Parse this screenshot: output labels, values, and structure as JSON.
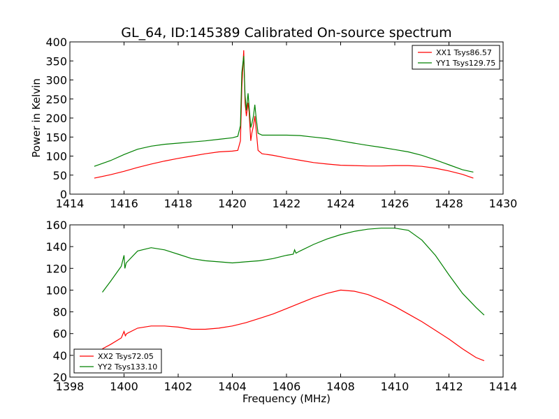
{
  "figure": {
    "title": "GL_64, ID:145389 Calibrated On-source spectrum",
    "xlabel": "Frequency (MHz)",
    "ylabel": "Power in Kelvin"
  },
  "chart_data": [
    {
      "type": "line",
      "title": "GL_64, ID:145389 Calibrated On-source spectrum",
      "xlabel": "",
      "ylabel": "Power in Kelvin",
      "xlim": [
        1414,
        1430
      ],
      "ylim": [
        0,
        400
      ],
      "xticks": [
        1414,
        1416,
        1418,
        1420,
        1422,
        1424,
        1426,
        1428,
        1430
      ],
      "yticks": [
        0,
        50,
        100,
        150,
        200,
        250,
        300,
        350,
        400
      ],
      "legend_position": "top-right",
      "series": [
        {
          "name": "XX1 Tsys86.57",
          "color": "#ff0000",
          "x": [
            1414.9,
            1415.5,
            1416.0,
            1416.5,
            1417.0,
            1417.5,
            1418.0,
            1418.5,
            1419.0,
            1419.5,
            1420.0,
            1420.2,
            1420.3,
            1420.35,
            1420.42,
            1420.47,
            1420.52,
            1420.58,
            1420.62,
            1420.68,
            1420.72,
            1420.78,
            1420.83,
            1420.88,
            1420.95,
            1421.1,
            1421.5,
            1422.0,
            1422.5,
            1423.0,
            1423.5,
            1424.0,
            1424.5,
            1425.0,
            1425.5,
            1426.0,
            1426.5,
            1427.0,
            1427.5,
            1428.0,
            1428.5,
            1428.9
          ],
          "y": [
            42,
            51,
            60,
            70,
            79,
            87,
            94,
            100,
            106,
            111,
            113,
            115,
            140,
            280,
            378,
            240,
            205,
            240,
            215,
            140,
            160,
            180,
            205,
            170,
            115,
            106,
            102,
            95,
            89,
            83,
            79,
            76,
            75,
            74,
            74,
            75,
            75,
            73,
            68,
            61,
            52,
            42
          ]
        },
        {
          "name": "YY1 Tsys129.75",
          "color": "#008000",
          "x": [
            1414.9,
            1415.5,
            1416.0,
            1416.5,
            1417.0,
            1417.5,
            1418.0,
            1418.5,
            1419.0,
            1419.5,
            1420.0,
            1420.2,
            1420.3,
            1420.35,
            1420.42,
            1420.47,
            1420.52,
            1420.58,
            1420.62,
            1420.68,
            1420.72,
            1420.78,
            1420.83,
            1420.88,
            1420.95,
            1421.1,
            1421.5,
            1422.0,
            1422.5,
            1423.0,
            1423.5,
            1424.0,
            1424.5,
            1425.0,
            1425.5,
            1426.0,
            1426.5,
            1427.0,
            1427.5,
            1428.0,
            1428.5,
            1428.9
          ],
          "y": [
            73,
            88,
            104,
            118,
            126,
            131,
            134,
            137,
            140,
            144,
            148,
            152,
            180,
            320,
            363,
            260,
            220,
            265,
            230,
            175,
            185,
            205,
            235,
            200,
            160,
            155,
            155,
            155,
            154,
            150,
            146,
            140,
            134,
            128,
            123,
            117,
            111,
            102,
            90,
            77,
            64,
            58
          ]
        }
      ]
    },
    {
      "type": "line",
      "title": "",
      "xlabel": "Frequency (MHz)",
      "ylabel": "",
      "xlim": [
        1398,
        1414
      ],
      "ylim": [
        20,
        160
      ],
      "xticks": [
        1398,
        1400,
        1402,
        1404,
        1406,
        1408,
        1410,
        1412,
        1414
      ],
      "yticks": [
        20,
        40,
        60,
        80,
        100,
        120,
        140,
        160
      ],
      "legend_position": "bottom-left",
      "series": [
        {
          "name": "XX2 Tsys72.05",
          "color": "#ff0000",
          "x": [
            1399.2,
            1399.5,
            1399.9,
            1400.0,
            1400.05,
            1400.1,
            1400.5,
            1401.0,
            1401.5,
            1402.0,
            1402.5,
            1403.0,
            1403.5,
            1404.0,
            1404.5,
            1405.0,
            1405.5,
            1406.0,
            1406.5,
            1407.0,
            1407.5,
            1408.0,
            1408.5,
            1409.0,
            1409.5,
            1410.0,
            1410.5,
            1411.0,
            1411.5,
            1412.0,
            1412.5,
            1413.0,
            1413.3
          ],
          "y": [
            46,
            50,
            56,
            62,
            58,
            60,
            65,
            67,
            67,
            66,
            64,
            64,
            65,
            67,
            70,
            74,
            78,
            83,
            88,
            93,
            97,
            100,
            99,
            96,
            91,
            85,
            78,
            71,
            63,
            55,
            46,
            38,
            35
          ]
        },
        {
          "name": "YY2 Tsys133.10",
          "color": "#008000",
          "x": [
            1399.2,
            1399.5,
            1399.9,
            1400.0,
            1400.03,
            1400.08,
            1400.5,
            1401.0,
            1401.5,
            1402.0,
            1402.5,
            1403.0,
            1403.5,
            1404.0,
            1404.5,
            1405.0,
            1405.5,
            1406.0,
            1406.25,
            1406.3,
            1406.35,
            1406.5,
            1407.0,
            1407.5,
            1408.0,
            1408.5,
            1409.0,
            1409.5,
            1410.0,
            1410.5,
            1411.0,
            1411.5,
            1412.0,
            1412.5,
            1413.0,
            1413.3
          ],
          "y": [
            98,
            108,
            122,
            132,
            120,
            125,
            136,
            139,
            137,
            133,
            129,
            127,
            126,
            125,
            126,
            127,
            129,
            132,
            133,
            137,
            134,
            136,
            142,
            147,
            151,
            154,
            156,
            157,
            157,
            155,
            146,
            132,
            114,
            97,
            84,
            77
          ]
        }
      ]
    }
  ]
}
